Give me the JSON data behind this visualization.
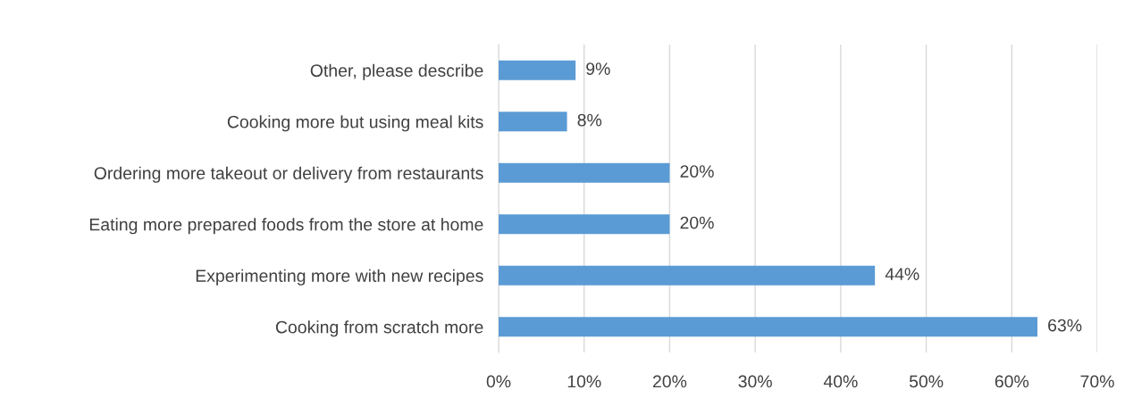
{
  "chart_data": {
    "type": "bar",
    "orientation": "horizontal",
    "categories": [
      "Other, please describe",
      "Cooking more but using meal kits",
      "Ordering more takeout or delivery from restaurants",
      "Eating more prepared foods from the store at home",
      "Experimenting more with new recipes",
      "Cooking from scratch more"
    ],
    "values": [
      9,
      8,
      20,
      20,
      44,
      63
    ],
    "value_labels": [
      "9%",
      "8%",
      "20%",
      "20%",
      "44%",
      "63%"
    ],
    "color": "#5b9bd5",
    "xlim": [
      0,
      70
    ],
    "xticks": [
      {
        "value": 0,
        "label": "0%"
      },
      {
        "value": 10,
        "label": "10%"
      },
      {
        "value": 20,
        "label": "20%"
      },
      {
        "value": 30,
        "label": "30%"
      },
      {
        "value": 40,
        "label": "40%"
      },
      {
        "value": 50,
        "label": "50%"
      },
      {
        "value": 60,
        "label": "60%"
      },
      {
        "value": 70,
        "label": "70%"
      }
    ],
    "grid": "x",
    "legend": false
  }
}
